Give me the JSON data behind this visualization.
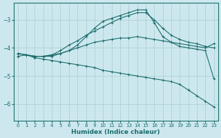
{
  "xlabel": "Humidex (Indice chaleur)",
  "bg_color": "#cce8ee",
  "grid_color": "#aacccc",
  "line_color": "#1a6b6b",
  "xlim": [
    -0.5,
    23.5
  ],
  "ylim": [
    -6.6,
    -2.4
  ],
  "yticks": [
    -6,
    -5,
    -4,
    -3
  ],
  "xticks": [
    0,
    1,
    2,
    3,
    4,
    5,
    6,
    7,
    8,
    9,
    10,
    11,
    12,
    13,
    14,
    15,
    16,
    17,
    18,
    19,
    20,
    21,
    22,
    23
  ],
  "series": [
    {
      "x": [
        0,
        1,
        2,
        3,
        4,
        5,
        6,
        7,
        8,
        9,
        10,
        11,
        12,
        13,
        14,
        15,
        16,
        17,
        18,
        19,
        20,
        21,
        22,
        23
      ],
      "y": [
        -4.3,
        -4.25,
        -4.3,
        -4.3,
        -4.25,
        -4.2,
        -4.1,
        -4.0,
        -3.9,
        -3.8,
        -3.75,
        -3.7,
        -3.65,
        -3.65,
        -3.6,
        -3.65,
        -3.7,
        -3.75,
        -3.8,
        -3.85,
        -3.9,
        -3.95,
        -4.0,
        -3.85
      ]
    },
    {
      "x": [
        0,
        1,
        2,
        3,
        4,
        5,
        6,
        7,
        8,
        9,
        10,
        11,
        12,
        13,
        14,
        15,
        16,
        17,
        18,
        19,
        20,
        21,
        22,
        23
      ],
      "y": [
        -4.2,
        -4.25,
        -4.35,
        -4.4,
        -4.45,
        -4.5,
        -4.55,
        -4.6,
        -4.65,
        -4.7,
        -4.8,
        -4.85,
        -4.9,
        -4.95,
        -5.0,
        -5.05,
        -5.1,
        -5.15,
        -5.2,
        -5.3,
        -5.5,
        -5.7,
        -5.9,
        -6.1
      ]
    },
    {
      "x": [
        0,
        1,
        2,
        3,
        4,
        5,
        6,
        7,
        8,
        9,
        10,
        11,
        12,
        13,
        14,
        15,
        16,
        17,
        18,
        19,
        20,
        21,
        22,
        23
      ],
      "y": [
        -4.2,
        -4.25,
        -4.3,
        -4.3,
        -4.3,
        -4.2,
        -4.1,
        -3.9,
        -3.6,
        -3.3,
        -3.05,
        -2.95,
        -2.85,
        -2.75,
        -2.65,
        -2.65,
        -3.1,
        -3.6,
        -3.8,
        -3.95,
        -4.0,
        -4.05,
        -4.1,
        -5.1
      ]
    },
    {
      "x": [
        0,
        1,
        2,
        3,
        4,
        5,
        6,
        7,
        8,
        9,
        10,
        11,
        12,
        13,
        14,
        15,
        16,
        17,
        18,
        19,
        20,
        21,
        22,
        23
      ],
      "y": [
        -4.2,
        -4.25,
        -4.3,
        -4.3,
        -4.25,
        -4.1,
        -3.9,
        -3.75,
        -3.55,
        -3.4,
        -3.25,
        -3.1,
        -2.95,
        -2.85,
        -2.75,
        -2.75,
        -3.0,
        -3.3,
        -3.55,
        -3.7,
        -3.8,
        -3.85,
        -3.95,
        -4.0
      ]
    }
  ]
}
